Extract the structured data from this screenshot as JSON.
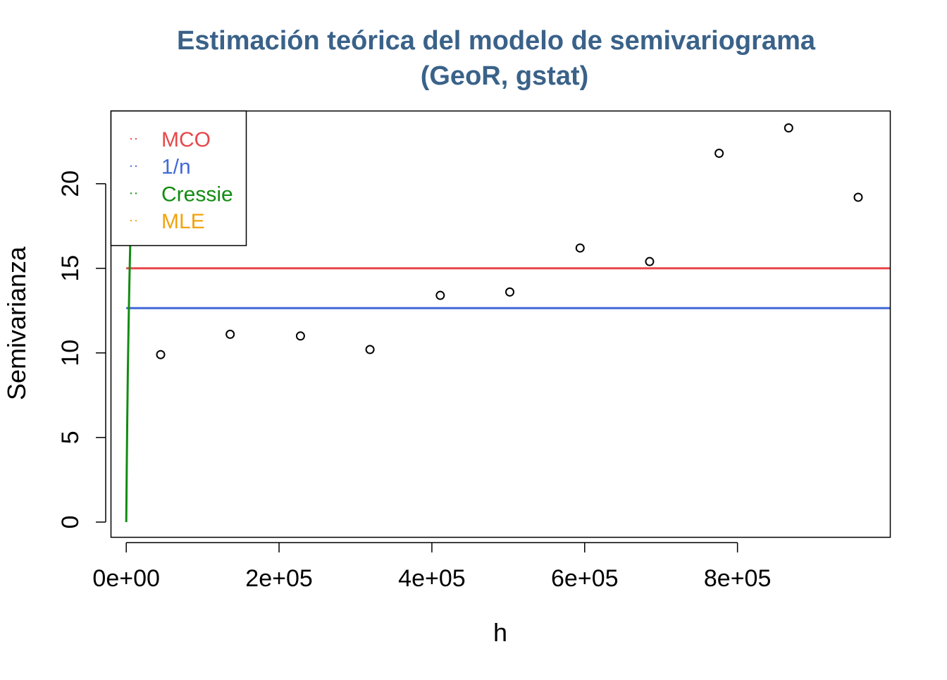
{
  "chart_data": {
    "type": "scatter",
    "title": "Estimación teórica del modelo de semivariograma",
    "subtitle": "(GeoR, gstat)",
    "xlabel": "h",
    "ylabel": "Semivarianza",
    "xlim": [
      -20000,
      1000000
    ],
    "ylim": [
      -0.9,
      24.3
    ],
    "x_ticks": [
      {
        "value": 0,
        "label": "0e+00"
      },
      {
        "value": 200000,
        "label": "2e+05"
      },
      {
        "value": 400000,
        "label": "4e+05"
      },
      {
        "value": 600000,
        "label": "6e+05"
      },
      {
        "value": 800000,
        "label": "8e+05"
      }
    ],
    "y_ticks": [
      {
        "value": 0,
        "label": "0"
      },
      {
        "value": 5,
        "label": "5"
      },
      {
        "value": 10,
        "label": "10"
      },
      {
        "value": 15,
        "label": "15"
      },
      {
        "value": 20,
        "label": "20"
      }
    ],
    "grid": false,
    "points": [
      {
        "x": 45000,
        "y": 9.9
      },
      {
        "x": 136000,
        "y": 11.1
      },
      {
        "x": 228000,
        "y": 11.0
      },
      {
        "x": 319000,
        "y": 10.2
      },
      {
        "x": 411000,
        "y": 13.4
      },
      {
        "x": 502000,
        "y": 13.6
      },
      {
        "x": 594000,
        "y": 16.2
      },
      {
        "x": 685000,
        "y": 15.4
      },
      {
        "x": 776000,
        "y": 21.8
      },
      {
        "x": 867000,
        "y": 23.3
      },
      {
        "x": 958000,
        "y": 19.2
      }
    ],
    "series": [
      {
        "name": "MCO",
        "color": "#e8474a",
        "x": [
          0,
          1000000
        ],
        "y": [
          15.0,
          15.0
        ]
      },
      {
        "name": "1/n",
        "color": "#4169d6",
        "x": [
          0,
          1000000
        ],
        "y": [
          12.65,
          12.65
        ]
      },
      {
        "name": "Cressie",
        "color": "#118c11",
        "x": [
          0,
          600,
          1300,
          2100,
          3000,
          3800,
          4400,
          5000,
          5500
        ],
        "y": [
          0,
          3.0,
          6.0,
          9.0,
          11.5,
          13.5,
          14.8,
          16.0,
          16.8
        ]
      },
      {
        "name": "MLE",
        "color": "#f2a30f",
        "x": [],
        "y": []
      }
    ],
    "legend": {
      "position": "top-left",
      "entries": [
        {
          "label": "MCO",
          "color": "#e8474a"
        },
        {
          "label": "1/n",
          "color": "#4169d6"
        },
        {
          "label": "Cressie",
          "color": "#118c11"
        },
        {
          "label": "MLE",
          "color": "#f2a30f"
        }
      ]
    },
    "colors": {
      "title": "#3a6289",
      "axis": "#000000"
    }
  }
}
